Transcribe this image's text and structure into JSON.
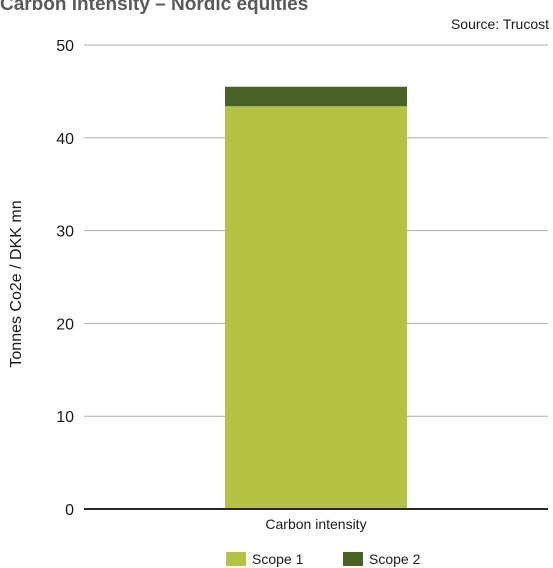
{
  "title": "Carbon intensity – Nordic equities",
  "source": "Source: Trucost",
  "colors": {
    "scope1": "#b5c244",
    "scope2": "#4a6226",
    "grid": "#aaaaaa",
    "axis": "#2a2a2a"
  },
  "legend": [
    {
      "label": "Scope 1",
      "color": "#b5c244"
    },
    {
      "label": "Scope 2",
      "color": "#4a6226"
    }
  ],
  "chart_data": {
    "type": "bar",
    "stacked": true,
    "title": "Carbon intensity – Nordic equities",
    "categories": [
      "Carbon intensity"
    ],
    "series": [
      {
        "name": "Scope 1",
        "values": [
          43.4
        ]
      },
      {
        "name": "Scope 2",
        "values": [
          2.1
        ]
      }
    ],
    "xlabel": "",
    "ylabel": "Tonnes Co2e / DKK mn",
    "ylim": [
      0,
      50
    ],
    "yticks": [
      0,
      10,
      20,
      30,
      40,
      50
    ],
    "grid": true,
    "legend_position": "bottom"
  }
}
